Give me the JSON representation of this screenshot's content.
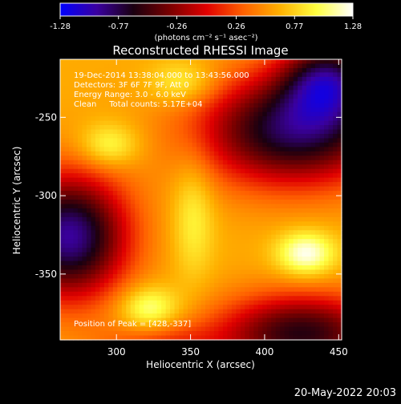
{
  "chart_data": {
    "type": "heatmap",
    "title": "Reconstructed RHESSI Image",
    "xlabel": "Heliocentric X (arcsec)",
    "ylabel": "Heliocentric Y (arcsec)",
    "xlim": [
      262,
      452
    ],
    "ylim": [
      -392,
      -213
    ],
    "x_ticks": [
      300,
      350,
      400,
      450
    ],
    "y_ticks": [
      -250,
      -300,
      -350
    ],
    "colorbar": {
      "range": [
        -1.28,
        1.28
      ],
      "ticks": [
        "-1.28",
        "-0.77",
        "-0.26",
        "0.26",
        "0.77",
        "1.28"
      ],
      "unit_label": "(photons cm⁻² s⁻¹ asec⁻²)",
      "colormap_stops": [
        "#0000ff",
        "#3a00a0",
        "#1a0010",
        "#7a0000",
        "#e00000",
        "#ff6000",
        "#ffb000",
        "#ffff40",
        "#ffffff"
      ]
    },
    "annotations": [
      "19-Dec-2014 13:38:04.000 to 13:43:56.000",
      "Detectors: 3F 6F 7F 9F, Att 0",
      "Energy Range: 3.0 - 6.0 keV",
      "Clean     Total counts: 5.17E+04"
    ],
    "peak_label": "Position of Peak = [428,-337]",
    "peak_position": [
      428,
      -337
    ],
    "grid": false,
    "features": [
      {
        "kind": "minimum",
        "x": 268,
        "y": -326,
        "sx": 28,
        "sy": 28,
        "value": -0.95
      },
      {
        "kind": "minimum",
        "x": 420,
        "y": -258,
        "sx": 45,
        "sy": 25,
        "value": -0.8
      },
      {
        "kind": "minimum",
        "x": 443,
        "y": -225,
        "sx": 22,
        "sy": 18,
        "value": -0.5
      },
      {
        "kind": "minimum",
        "x": 425,
        "y": -388,
        "sx": 40,
        "sy": 18,
        "value": -0.6
      },
      {
        "kind": "minimum",
        "x": 330,
        "y": -395,
        "sx": 30,
        "sy": 10,
        "value": 0.2
      },
      {
        "kind": "maximum",
        "x": 428,
        "y": -337,
        "sx": 14,
        "sy": 10,
        "value": 1.28
      },
      {
        "kind": "maximum",
        "x": 322,
        "y": -372,
        "sx": 14,
        "sy": 10,
        "value": 1.15
      },
      {
        "kind": "maximum",
        "x": 295,
        "y": -268,
        "sx": 14,
        "sy": 10,
        "value": 1.05
      },
      {
        "kind": "maximum",
        "x": 345,
        "y": -228,
        "sx": 16,
        "sy": 10,
        "value": 1.0
      },
      {
        "kind": "maximum",
        "x": 352,
        "y": -313,
        "sx": 10,
        "sy": 28,
        "value": 0.95
      }
    ]
  },
  "footer": {
    "date": "20-May-2022 20:03"
  }
}
